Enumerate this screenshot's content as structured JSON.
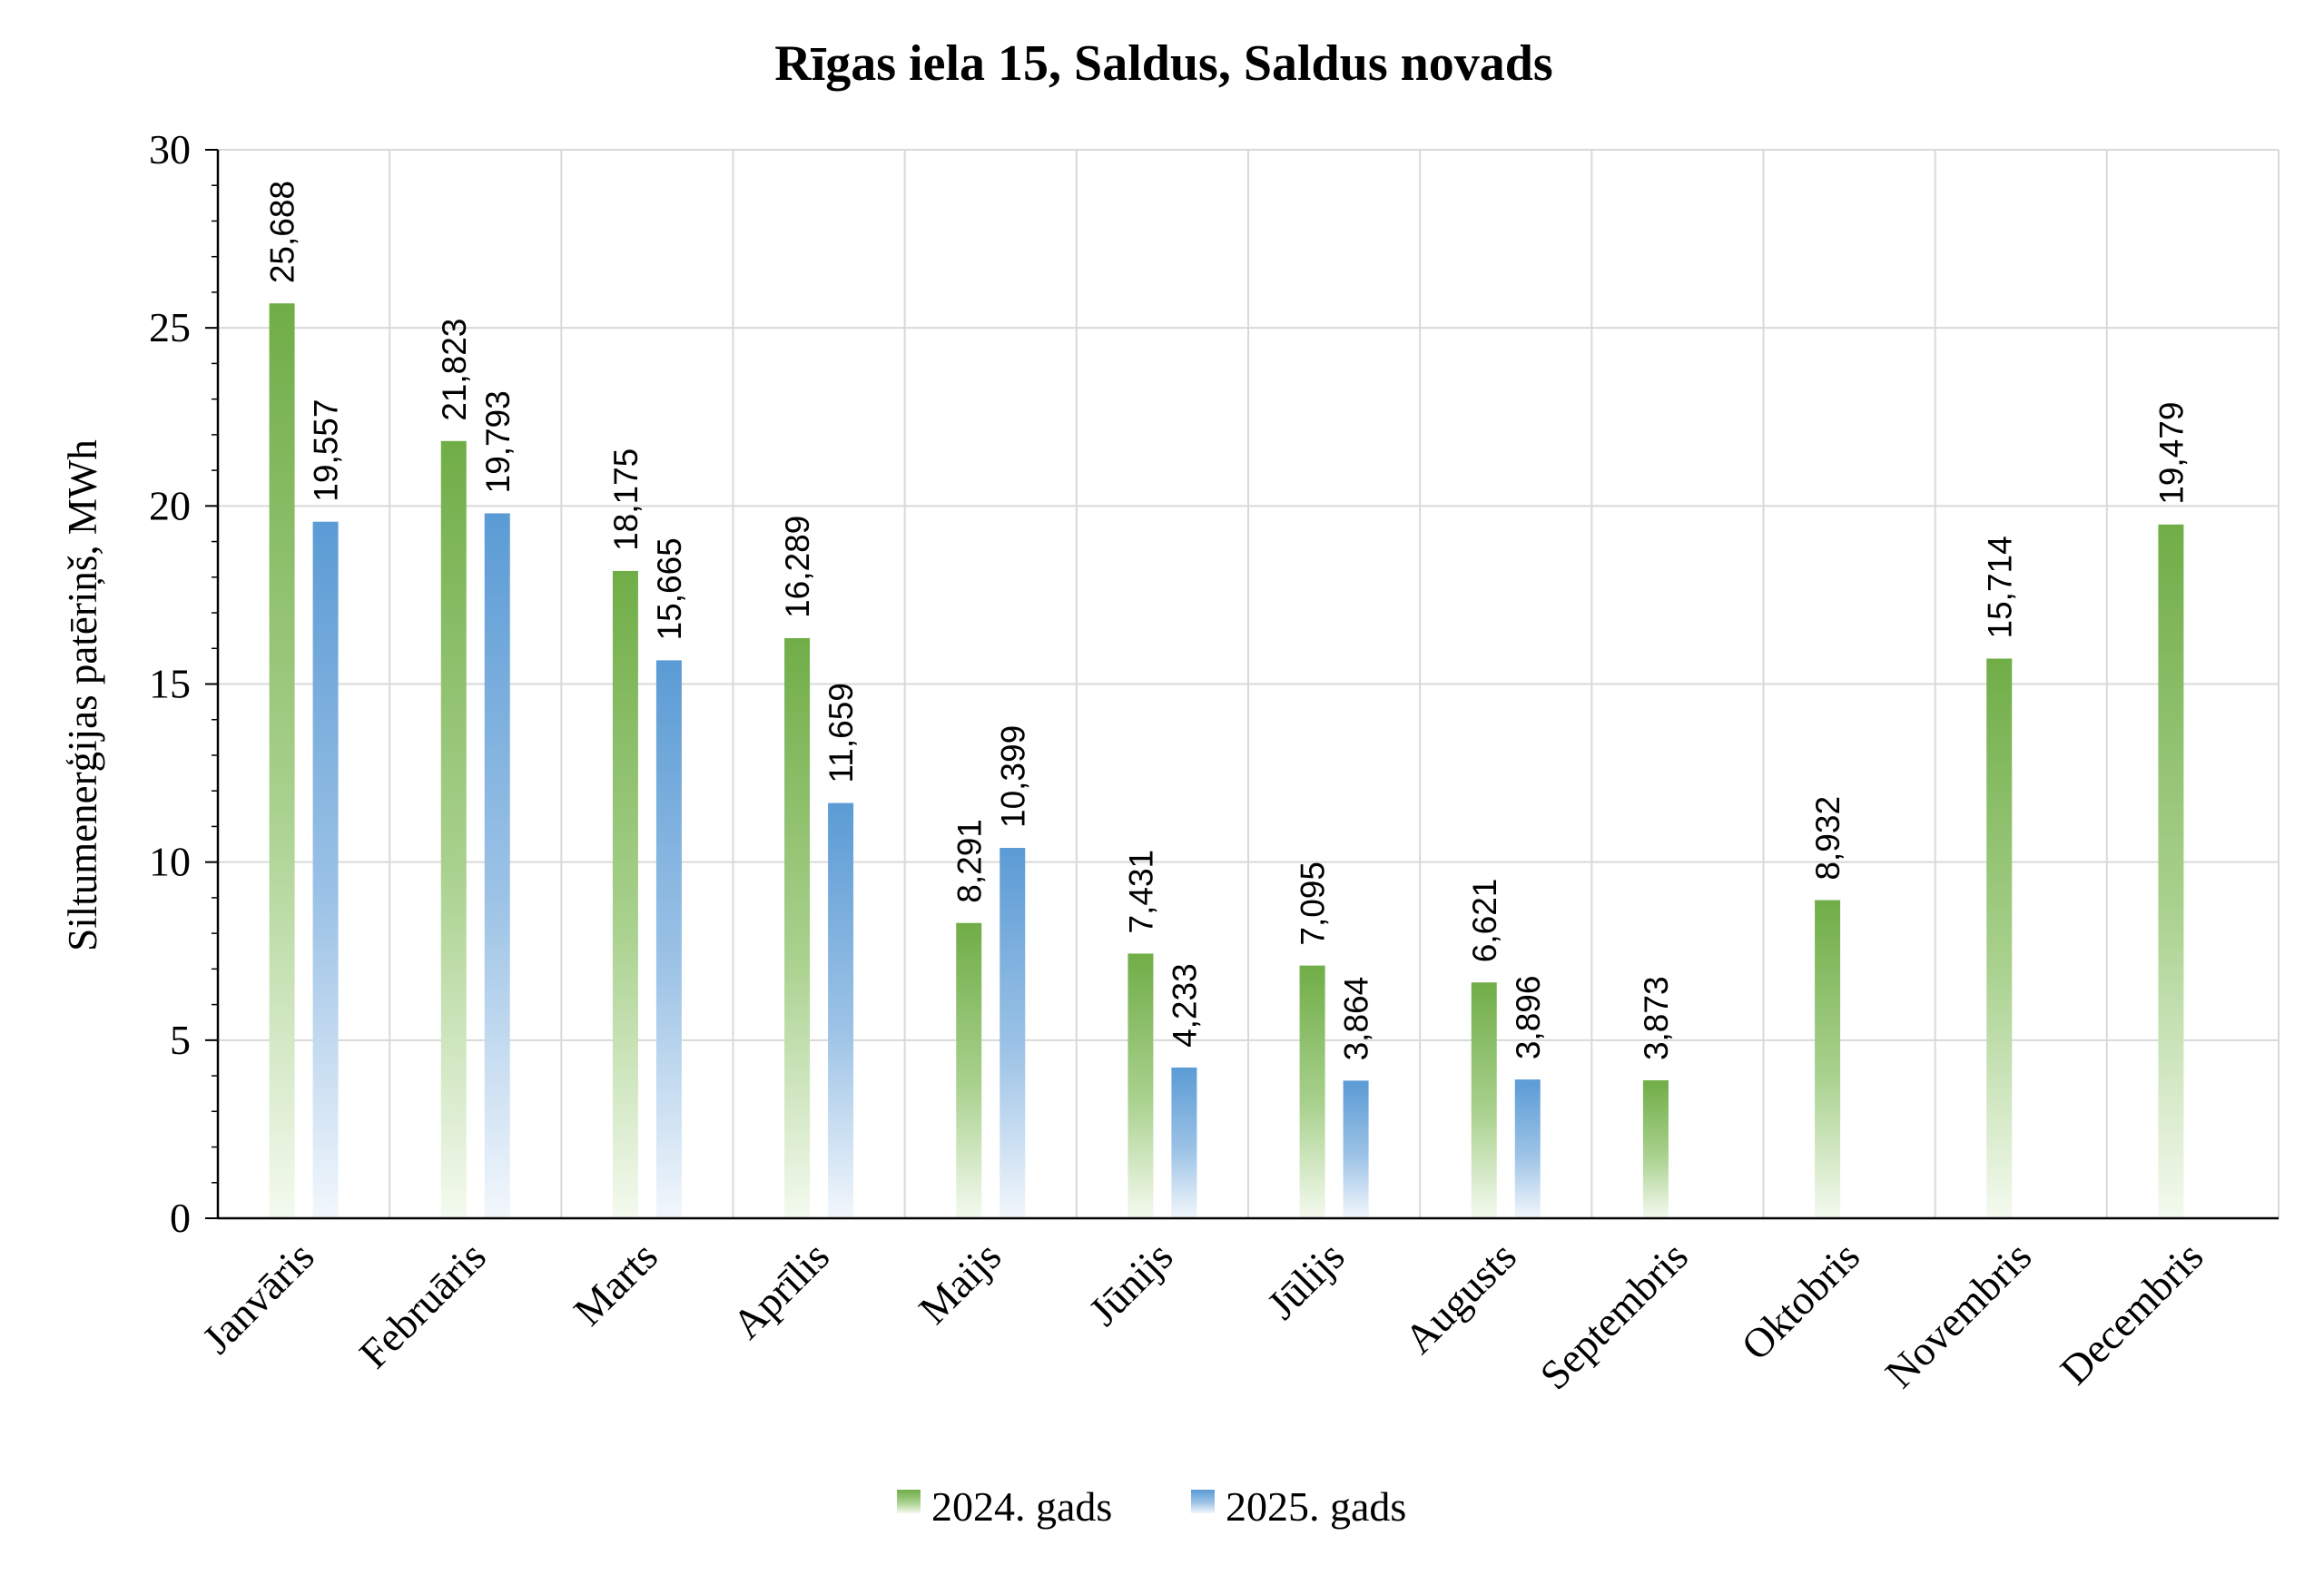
{
  "chart_data": {
    "type": "bar",
    "title": "Rīgas iela 15, Saldus, Saldus novads",
    "xlabel": "",
    "ylabel": "Siltumenerģijas patēriņš, MWh",
    "ylim": [
      0,
      30
    ],
    "yticks": [
      0,
      5,
      10,
      15,
      20,
      25,
      30
    ],
    "grid": true,
    "legend_position": "bottom",
    "categories": [
      "Janvāris",
      "Februāris",
      "Marts",
      "Aprīlis",
      "Maijs",
      "Jūnijs",
      "Jūlijs",
      "Augusts",
      "Septembris",
      "Oktobris",
      "Novembris",
      "Decembris"
    ],
    "series": [
      {
        "name": "2024. gads",
        "color": "#70AD47",
        "values": [
          25.688,
          21.823,
          18.175,
          16.289,
          8.291,
          7.431,
          7.095,
          6.621,
          3.873,
          8.932,
          15.714,
          19.479
        ],
        "labels": [
          "25,688",
          "21,823",
          "18,175",
          "16,289",
          "8,291",
          "7,431",
          "7,095",
          "6,621",
          "3,873",
          "8,932",
          "15,714",
          "19,479"
        ]
      },
      {
        "name": "2025. gads",
        "color": "#5B9BD5",
        "values": [
          19.557,
          19.793,
          15.665,
          11.659,
          10.399,
          4.233,
          3.864,
          3.896,
          null,
          null,
          null,
          null
        ],
        "labels": [
          "19,557",
          "19,793",
          "15,665",
          "11,659",
          "10,399",
          "4,233",
          "3,864",
          "3,896",
          null,
          null,
          null,
          null
        ]
      }
    ]
  }
}
